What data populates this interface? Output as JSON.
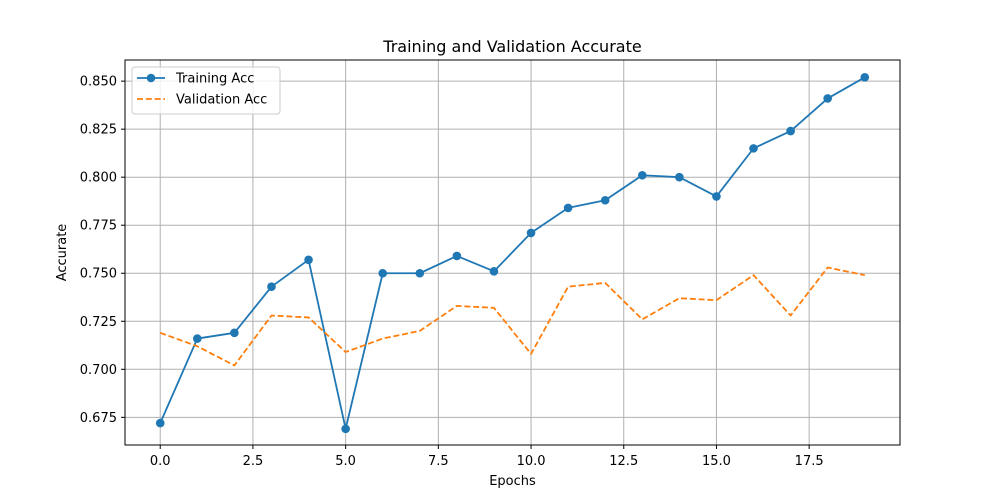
{
  "chart_data": {
    "type": "line",
    "title": "Training and Validation Accurate",
    "xlabel": "Epochs",
    "ylabel": "Accurate",
    "xlim": [
      -0.95,
      19.95
    ],
    "ylim": [
      0.6606,
      0.861
    ],
    "xticks": [
      0,
      2.5,
      5,
      7.5,
      10,
      12.5,
      15,
      17.5
    ],
    "xtick_labels": [
      "0.0",
      "2.5",
      "5.0",
      "7.5",
      "10.0",
      "12.5",
      "15.0",
      "17.5"
    ],
    "yticks": [
      0.675,
      0.7,
      0.725,
      0.75,
      0.775,
      0.8,
      0.825,
      0.85
    ],
    "ytick_labels": [
      "0.675",
      "0.700",
      "0.725",
      "0.750",
      "0.775",
      "0.800",
      "0.825",
      "0.850"
    ],
    "grid": true,
    "legend_position": "top-left",
    "x": [
      0,
      1,
      2,
      3,
      4,
      5,
      6,
      7,
      8,
      9,
      10,
      11,
      12,
      13,
      14,
      15,
      16,
      17,
      18,
      19
    ],
    "series": [
      {
        "name": "Training Acc",
        "color": "#1f77b4",
        "style": "solid-marker",
        "values": [
          0.672,
          0.716,
          0.719,
          0.743,
          0.757,
          0.669,
          0.75,
          0.75,
          0.759,
          0.751,
          0.771,
          0.784,
          0.788,
          0.801,
          0.8,
          0.79,
          0.815,
          0.824,
          0.841,
          0.852
        ]
      },
      {
        "name": "Validation Acc",
        "color": "#ff7f0e",
        "style": "dashed",
        "values": [
          0.719,
          0.712,
          0.702,
          0.728,
          0.727,
          0.709,
          0.716,
          0.72,
          0.733,
          0.732,
          0.708,
          0.743,
          0.745,
          0.726,
          0.737,
          0.736,
          0.749,
          0.728,
          0.753,
          0.749
        ]
      }
    ]
  }
}
